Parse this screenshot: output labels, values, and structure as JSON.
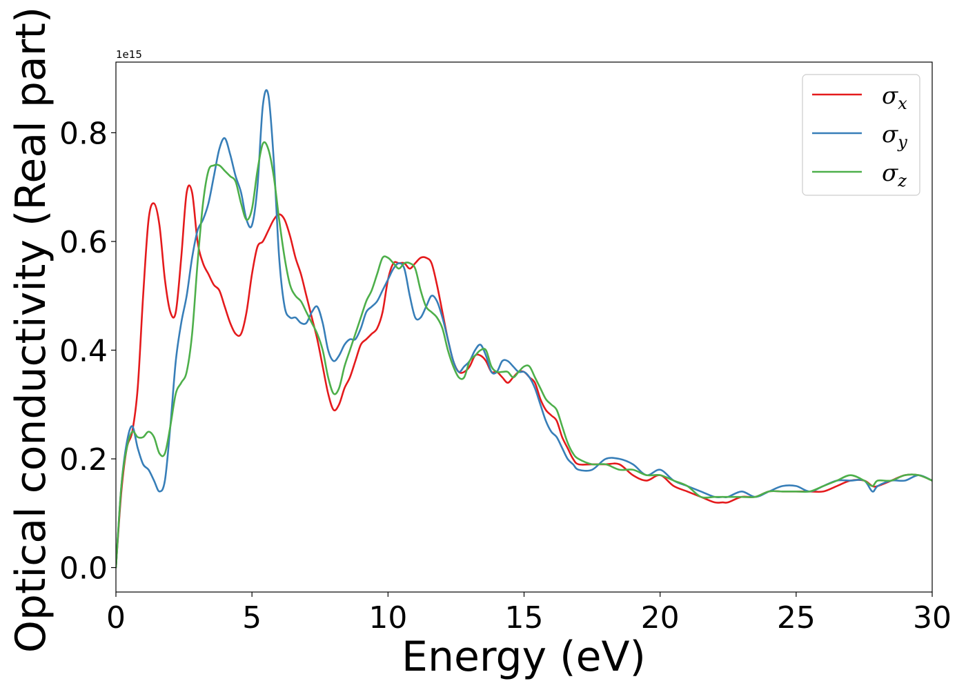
{
  "chart_data": {
    "type": "line",
    "title": "",
    "xlabel": "Energy (eV)",
    "ylabel": "Optical conductivity (Real part)",
    "y_offset_label": "1e15",
    "xlim": [
      0,
      30
    ],
    "ylim": [
      -0.045,
      0.93
    ],
    "xticks": [
      0,
      5,
      10,
      15,
      20,
      25,
      30
    ],
    "yticks": [
      0.0,
      0.2,
      0.4,
      0.6,
      0.8
    ],
    "xtick_labels": [
      "0",
      "5",
      "10",
      "15",
      "20",
      "25",
      "30"
    ],
    "ytick_labels": [
      "0.0",
      "0.2",
      "0.4",
      "0.6",
      "0.8"
    ],
    "grid": false,
    "legend_position": "top-right",
    "series": [
      {
        "name": "σ",
        "subscript": "x",
        "color": "#e41a1c",
        "x": [
          0,
          0.2,
          0.4,
          0.6,
          0.8,
          1.0,
          1.2,
          1.4,
          1.6,
          1.8,
          2.0,
          2.2,
          2.4,
          2.6,
          2.8,
          3.0,
          3.2,
          3.4,
          3.6,
          3.8,
          4.0,
          4.2,
          4.4,
          4.6,
          4.8,
          5.0,
          5.2,
          5.4,
          5.6,
          5.8,
          6.0,
          6.2,
          6.4,
          6.6,
          6.8,
          7.0,
          7.2,
          7.4,
          7.6,
          7.8,
          8.0,
          8.2,
          8.4,
          8.6,
          8.8,
          9.0,
          9.2,
          9.4,
          9.6,
          9.8,
          10.0,
          10.2,
          10.4,
          10.6,
          10.8,
          11.0,
          11.2,
          11.4,
          11.6,
          11.8,
          12.0,
          12.2,
          12.4,
          12.6,
          12.8,
          13.0,
          13.2,
          13.4,
          13.6,
          13.8,
          14.0,
          14.2,
          14.4,
          14.6,
          14.8,
          15.0,
          15.2,
          15.4,
          15.6,
          15.8,
          16.0,
          16.2,
          16.4,
          16.6,
          16.8,
          17.0,
          17.5,
          18.0,
          18.5,
          19.0,
          19.5,
          20.0,
          20.5,
          21.0,
          21.5,
          22.0,
          22.3,
          22.5,
          23.0,
          23.5,
          24.0,
          24.5,
          25.0,
          25.5,
          26.0,
          26.5,
          27.0,
          27.5,
          27.8,
          28.0,
          28.5,
          29.0,
          29.5,
          30.0
        ],
        "values": [
          0.0,
          0.14,
          0.22,
          0.25,
          0.33,
          0.5,
          0.64,
          0.67,
          0.63,
          0.53,
          0.47,
          0.47,
          0.57,
          0.69,
          0.69,
          0.6,
          0.56,
          0.54,
          0.52,
          0.51,
          0.48,
          0.45,
          0.43,
          0.43,
          0.47,
          0.54,
          0.59,
          0.6,
          0.62,
          0.64,
          0.65,
          0.64,
          0.61,
          0.57,
          0.54,
          0.5,
          0.46,
          0.42,
          0.37,
          0.32,
          0.29,
          0.3,
          0.33,
          0.35,
          0.38,
          0.41,
          0.42,
          0.43,
          0.44,
          0.47,
          0.53,
          0.56,
          0.56,
          0.56,
          0.55,
          0.56,
          0.57,
          0.57,
          0.56,
          0.52,
          0.47,
          0.42,
          0.38,
          0.36,
          0.36,
          0.37,
          0.39,
          0.39,
          0.38,
          0.36,
          0.36,
          0.35,
          0.34,
          0.35,
          0.36,
          0.36,
          0.35,
          0.34,
          0.31,
          0.29,
          0.28,
          0.27,
          0.24,
          0.22,
          0.2,
          0.19,
          0.19,
          0.19,
          0.19,
          0.17,
          0.16,
          0.17,
          0.15,
          0.14,
          0.13,
          0.12,
          0.12,
          0.12,
          0.13,
          0.13,
          0.14,
          0.14,
          0.14,
          0.14,
          0.14,
          0.15,
          0.16,
          0.16,
          0.15,
          0.15,
          0.16,
          0.17,
          0.17,
          0.16
        ]
      },
      {
        "name": "σ",
        "subscript": "y",
        "color": "#377eb8",
        "x": [
          0,
          0.2,
          0.4,
          0.6,
          0.8,
          1.0,
          1.2,
          1.4,
          1.6,
          1.8,
          2.0,
          2.2,
          2.4,
          2.6,
          2.8,
          3.0,
          3.2,
          3.4,
          3.6,
          3.8,
          4.0,
          4.2,
          4.4,
          4.6,
          4.8,
          5.0,
          5.2,
          5.4,
          5.6,
          5.8,
          6.0,
          6.2,
          6.4,
          6.6,
          6.8,
          7.0,
          7.2,
          7.4,
          7.6,
          7.8,
          8.0,
          8.2,
          8.4,
          8.6,
          8.8,
          9.0,
          9.2,
          9.4,
          9.6,
          9.8,
          10.0,
          10.2,
          10.4,
          10.6,
          10.8,
          11.0,
          11.2,
          11.4,
          11.6,
          11.8,
          12.0,
          12.2,
          12.4,
          12.6,
          12.8,
          13.0,
          13.2,
          13.4,
          13.6,
          13.8,
          14.0,
          14.2,
          14.4,
          14.6,
          14.8,
          15.0,
          15.2,
          15.4,
          15.6,
          15.8,
          16.0,
          16.2,
          16.4,
          16.6,
          16.8,
          17.0,
          17.5,
          18.0,
          18.5,
          19.0,
          19.5,
          20.0,
          20.5,
          21.0,
          21.5,
          22.0,
          22.3,
          22.5,
          23.0,
          23.5,
          24.0,
          24.5,
          25.0,
          25.5,
          26.0,
          26.5,
          27.0,
          27.5,
          27.8,
          28.0,
          28.5,
          29.0,
          29.5,
          30.0
        ],
        "values": [
          0.0,
          0.15,
          0.23,
          0.26,
          0.22,
          0.19,
          0.18,
          0.16,
          0.14,
          0.16,
          0.26,
          0.38,
          0.45,
          0.5,
          0.57,
          0.62,
          0.64,
          0.67,
          0.72,
          0.77,
          0.79,
          0.76,
          0.72,
          0.69,
          0.64,
          0.63,
          0.7,
          0.85,
          0.87,
          0.75,
          0.57,
          0.48,
          0.46,
          0.46,
          0.45,
          0.45,
          0.47,
          0.48,
          0.45,
          0.4,
          0.38,
          0.39,
          0.41,
          0.42,
          0.42,
          0.44,
          0.47,
          0.48,
          0.49,
          0.51,
          0.53,
          0.55,
          0.56,
          0.55,
          0.5,
          0.46,
          0.46,
          0.48,
          0.5,
          0.49,
          0.46,
          0.42,
          0.38,
          0.36,
          0.37,
          0.38,
          0.4,
          0.41,
          0.39,
          0.36,
          0.36,
          0.38,
          0.38,
          0.37,
          0.36,
          0.36,
          0.35,
          0.33,
          0.3,
          0.27,
          0.25,
          0.24,
          0.22,
          0.2,
          0.19,
          0.18,
          0.18,
          0.2,
          0.2,
          0.19,
          0.17,
          0.18,
          0.16,
          0.15,
          0.14,
          0.13,
          0.13,
          0.13,
          0.14,
          0.13,
          0.14,
          0.15,
          0.15,
          0.14,
          0.15,
          0.16,
          0.16,
          0.16,
          0.14,
          0.15,
          0.16,
          0.16,
          0.17,
          0.16
        ]
      },
      {
        "name": "σ",
        "subscript": "z",
        "color": "#4daf4a",
        "x": [
          0,
          0.2,
          0.4,
          0.6,
          0.8,
          1.0,
          1.2,
          1.4,
          1.6,
          1.8,
          2.0,
          2.2,
          2.4,
          2.6,
          2.8,
          3.0,
          3.2,
          3.4,
          3.6,
          3.8,
          4.0,
          4.2,
          4.4,
          4.6,
          4.8,
          5.0,
          5.2,
          5.4,
          5.6,
          5.8,
          6.0,
          6.2,
          6.4,
          6.6,
          6.8,
          7.0,
          7.2,
          7.4,
          7.6,
          7.8,
          8.0,
          8.2,
          8.4,
          8.6,
          8.8,
          9.0,
          9.2,
          9.4,
          9.6,
          9.8,
          10.0,
          10.2,
          10.4,
          10.6,
          10.8,
          11.0,
          11.2,
          11.4,
          11.6,
          11.8,
          12.0,
          12.2,
          12.4,
          12.6,
          12.8,
          13.0,
          13.2,
          13.4,
          13.6,
          13.8,
          14.0,
          14.2,
          14.4,
          14.6,
          14.8,
          15.0,
          15.2,
          15.4,
          15.6,
          15.8,
          16.0,
          16.2,
          16.4,
          16.6,
          16.8,
          17.0,
          17.5,
          18.0,
          18.5,
          19.0,
          19.5,
          20.0,
          20.5,
          21.0,
          21.5,
          22.0,
          22.3,
          22.5,
          23.0,
          23.5,
          24.0,
          24.5,
          25.0,
          25.5,
          26.0,
          26.5,
          27.0,
          27.5,
          27.8,
          28.0,
          28.5,
          29.0,
          29.5,
          30.0
        ],
        "values": [
          0.0,
          0.15,
          0.22,
          0.25,
          0.24,
          0.24,
          0.25,
          0.24,
          0.21,
          0.21,
          0.26,
          0.32,
          0.34,
          0.36,
          0.43,
          0.56,
          0.67,
          0.73,
          0.74,
          0.74,
          0.73,
          0.72,
          0.71,
          0.67,
          0.64,
          0.66,
          0.73,
          0.78,
          0.77,
          0.72,
          0.64,
          0.57,
          0.52,
          0.5,
          0.49,
          0.47,
          0.45,
          0.43,
          0.4,
          0.35,
          0.32,
          0.33,
          0.37,
          0.4,
          0.43,
          0.46,
          0.49,
          0.51,
          0.54,
          0.57,
          0.57,
          0.56,
          0.55,
          0.56,
          0.56,
          0.55,
          0.51,
          0.48,
          0.47,
          0.46,
          0.44,
          0.4,
          0.37,
          0.35,
          0.35,
          0.38,
          0.39,
          0.4,
          0.4,
          0.37,
          0.36,
          0.36,
          0.36,
          0.35,
          0.36,
          0.37,
          0.37,
          0.35,
          0.33,
          0.31,
          0.3,
          0.29,
          0.26,
          0.23,
          0.21,
          0.2,
          0.19,
          0.19,
          0.18,
          0.18,
          0.17,
          0.17,
          0.16,
          0.15,
          0.13,
          0.13,
          0.13,
          0.13,
          0.13,
          0.13,
          0.14,
          0.14,
          0.14,
          0.14,
          0.15,
          0.16,
          0.17,
          0.16,
          0.15,
          0.16,
          0.16,
          0.17,
          0.17,
          0.16
        ]
      }
    ]
  }
}
